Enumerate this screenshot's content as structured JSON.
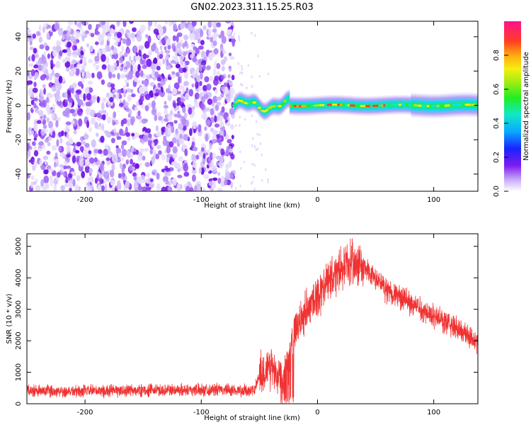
{
  "title": "GN02.2023.311.15.25.R03",
  "colors": {
    "snr_line": "#f03232",
    "noise": "#7a1cf0",
    "noise_light": "#d8c8fb"
  },
  "chart_data": [
    {
      "type": "heatmap",
      "xlabel": "Height of straight line (km)",
      "ylabel": "Frequency (Hz)",
      "xlim": [
        -250,
        138
      ],
      "ylim": [
        -50,
        49
      ],
      "xticks": [
        -200,
        -100,
        0,
        100
      ],
      "yticks": [
        -40,
        -20,
        0,
        20,
        40
      ],
      "noise_region_x": [
        -250,
        -72
      ],
      "signal_track": {
        "x_start": -72,
        "x_end": 138,
        "center_frequency_hz": 0,
        "bandwidth_hz": 6,
        "wobble_segment_x": [
          -72,
          -25
        ],
        "peak_amplitude_segment_x": [
          -40,
          60
        ]
      },
      "colorbar": {
        "label": "Normalized spectral amplitude",
        "range": [
          0,
          1
        ],
        "ticks": [
          0.0,
          0.2,
          0.4,
          0.6,
          0.8
        ]
      }
    },
    {
      "type": "line",
      "xlabel": "Height of straight line (km)",
      "ylabel": "SNR (10 * v/v)",
      "xlim": [
        -250,
        138
      ],
      "ylim": [
        0,
        5400
      ],
      "xticks": [
        -200,
        -100,
        0,
        100
      ],
      "yticks": [
        0,
        1000,
        2000,
        3000,
        4000,
        5000
      ],
      "envelope": {
        "x": [
          -250,
          -200,
          -150,
          -100,
          -70,
          -55,
          -50,
          -40,
          -30,
          -20,
          -10,
          0,
          10,
          20,
          30,
          40,
          50,
          60,
          80,
          100,
          120,
          138
        ],
        "y": [
          400,
          400,
          420,
          450,
          430,
          400,
          900,
          1200,
          800,
          2200,
          3000,
          3400,
          3900,
          4300,
          4500,
          4300,
          3950,
          3600,
          3200,
          2800,
          2400,
          2000
        ]
      },
      "noise_amplitude": [
        {
          "x_range": [
            -250,
            -50
          ],
          "amplitude": 160
        },
        {
          "x_range": [
            -50,
            -20
          ],
          "amplitude": 600
        },
        {
          "x_range": [
            -20,
            40
          ],
          "amplitude": 550
        },
        {
          "x_range": [
            40,
            138
          ],
          "amplitude": 320
        }
      ]
    }
  ]
}
